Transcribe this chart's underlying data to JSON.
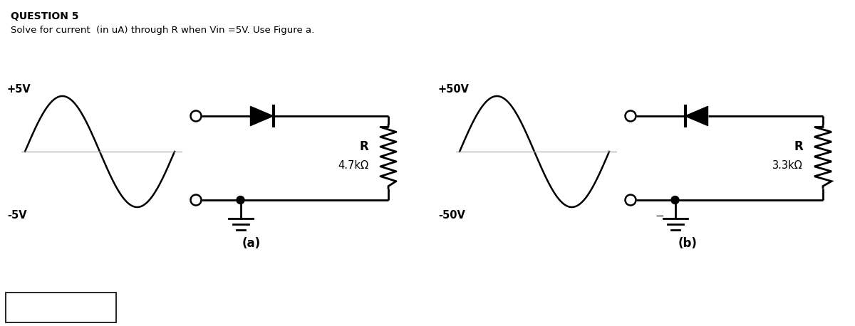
{
  "title": "QUESTION 5",
  "subtitle": "Solve for current  (in uA) through R when Vin =5V. Use Figure a.",
  "fig_a_label": "(a)",
  "fig_b_label": "(b)",
  "fig_a_plus": "+5V",
  "fig_a_minus": "-5V",
  "fig_b_plus": "+50V",
  "fig_b_minus": "-50V",
  "fig_a_R": "R",
  "fig_a_Rval": "4.7kΩ",
  "fig_b_R": "R",
  "fig_b_Rval": "3.3kΩ",
  "bg_color": "#ffffff",
  "line_color": "#000000"
}
